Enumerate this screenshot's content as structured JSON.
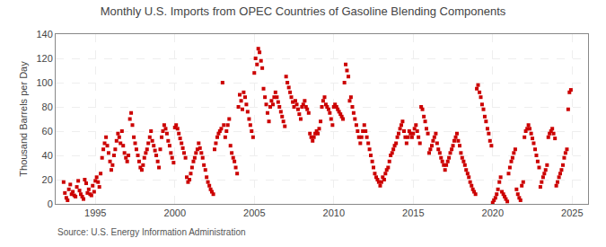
{
  "chart_data": {
    "type": "scatter",
    "title": "Monthly U.S. Imports from OPEC Countries of Gasoline Blending Components",
    "ylabel": "Thousand Barrels per Day",
    "annotations": [
      "Source: U.S. Energy Information Administration"
    ],
    "color": "#cc0000",
    "marker": "square",
    "grid": true,
    "xlim": [
      1992.5,
      2026.0
    ],
    "xticks": [
      1995,
      2000,
      2005,
      2010,
      2015,
      2020,
      2025
    ],
    "ylim": [
      0,
      140
    ],
    "yticks": [
      0,
      20,
      40,
      60,
      80,
      100,
      120,
      140
    ],
    "x": [
      1993.0,
      1993.08,
      1993.17,
      1993.25,
      1993.33,
      1993.42,
      1993.5,
      1993.58,
      1993.67,
      1993.75,
      1993.83,
      1993.92,
      1994.0,
      1994.08,
      1994.17,
      1994.25,
      1994.33,
      1994.42,
      1994.5,
      1994.58,
      1994.67,
      1994.75,
      1994.83,
      1994.92,
      1995.0,
      1995.08,
      1995.17,
      1995.25,
      1995.33,
      1995.42,
      1995.5,
      1995.58,
      1995.67,
      1995.75,
      1995.83,
      1995.92,
      1996.0,
      1996.08,
      1996.17,
      1996.25,
      1996.33,
      1996.42,
      1996.5,
      1996.58,
      1996.67,
      1996.75,
      1996.83,
      1996.92,
      1997.0,
      1997.08,
      1997.17,
      1997.25,
      1997.33,
      1997.42,
      1997.5,
      1997.58,
      1997.67,
      1997.75,
      1997.83,
      1997.92,
      1998.0,
      1998.08,
      1998.17,
      1998.25,
      1998.33,
      1998.42,
      1998.5,
      1998.58,
      1998.67,
      1998.75,
      1998.83,
      1998.92,
      1999.0,
      1999.08,
      1999.17,
      1999.25,
      1999.33,
      1999.42,
      1999.5,
      1999.58,
      1999.67,
      1999.75,
      1999.83,
      1999.92,
      2000.0,
      2000.08,
      2000.17,
      2000.25,
      2000.33,
      2000.42,
      2000.5,
      2000.58,
      2000.67,
      2000.75,
      2000.83,
      2000.92,
      2001.0,
      2001.08,
      2001.17,
      2001.25,
      2001.33,
      2001.42,
      2001.5,
      2001.58,
      2001.67,
      2001.75,
      2001.83,
      2001.92,
      2002.0,
      2002.08,
      2002.17,
      2002.25,
      2002.33,
      2002.42,
      2002.5,
      2002.58,
      2002.67,
      2002.75,
      2002.83,
      2002.92,
      2003.0,
      2003.08,
      2003.17,
      2003.25,
      2003.33,
      2003.42,
      2003.5,
      2003.58,
      2003.67,
      2003.75,
      2003.83,
      2003.92,
      2004.0,
      2004.08,
      2004.17,
      2004.25,
      2004.33,
      2004.42,
      2004.5,
      2004.58,
      2004.67,
      2004.75,
      2004.83,
      2004.92,
      2005.0,
      2005.08,
      2005.17,
      2005.25,
      2005.33,
      2005.42,
      2005.5,
      2005.58,
      2005.67,
      2005.75,
      2005.83,
      2005.92,
      2006.0,
      2006.08,
      2006.17,
      2006.25,
      2006.33,
      2006.42,
      2006.5,
      2006.58,
      2006.67,
      2006.75,
      2006.83,
      2006.92,
      2007.0,
      2007.08,
      2007.17,
      2007.25,
      2007.33,
      2007.42,
      2007.5,
      2007.58,
      2007.67,
      2007.75,
      2007.83,
      2007.92,
      2008.0,
      2008.08,
      2008.17,
      2008.25,
      2008.33,
      2008.42,
      2008.5,
      2008.58,
      2008.67,
      2008.75,
      2008.83,
      2008.92,
      2009.0,
      2009.08,
      2009.17,
      2009.25,
      2009.33,
      2009.42,
      2009.5,
      2009.58,
      2009.67,
      2009.75,
      2009.83,
      2009.92,
      2010.0,
      2010.08,
      2010.17,
      2010.25,
      2010.33,
      2010.42,
      2010.5,
      2010.58,
      2010.67,
      2010.75,
      2010.83,
      2010.92,
      2011.0,
      2011.08,
      2011.17,
      2011.25,
      2011.33,
      2011.42,
      2011.5,
      2011.58,
      2011.67,
      2011.75,
      2011.83,
      2011.92,
      2012.0,
      2012.08,
      2012.17,
      2012.25,
      2012.33,
      2012.42,
      2012.5,
      2012.58,
      2012.67,
      2012.75,
      2012.83,
      2012.92,
      2013.0,
      2013.08,
      2013.17,
      2013.25,
      2013.33,
      2013.42,
      2013.5,
      2013.58,
      2013.67,
      2013.75,
      2013.83,
      2013.92,
      2014.0,
      2014.08,
      2014.17,
      2014.25,
      2014.33,
      2014.42,
      2014.5,
      2014.58,
      2014.67,
      2014.75,
      2014.83,
      2014.92,
      2015.0,
      2015.08,
      2015.17,
      2015.25,
      2015.33,
      2015.42,
      2015.5,
      2015.58,
      2015.67,
      2015.75,
      2015.83,
      2015.92,
      2016.0,
      2016.08,
      2016.17,
      2016.25,
      2016.33,
      2016.42,
      2016.5,
      2016.58,
      2016.67,
      2016.75,
      2016.83,
      2016.92,
      2017.0,
      2017.08,
      2017.17,
      2017.25,
      2017.33,
      2017.42,
      2017.5,
      2017.58,
      2017.67,
      2017.75,
      2017.83,
      2017.92,
      2018.0,
      2018.08,
      2018.17,
      2018.25,
      2018.33,
      2018.42,
      2018.5,
      2018.58,
      2018.67,
      2018.75,
      2018.83,
      2018.92,
      2019.0,
      2019.08,
      2019.17,
      2019.25,
      2019.33,
      2019.42,
      2019.5,
      2019.58,
      2019.67,
      2019.75,
      2019.83,
      2019.92,
      2020.0,
      2020.08,
      2020.17,
      2020.25,
      2020.33,
      2020.42,
      2020.5,
      2020.58,
      2020.67,
      2020.75,
      2020.83,
      2020.92,
      2021.0,
      2021.08,
      2021.17,
      2021.25,
      2021.33,
      2021.42,
      2021.5,
      2021.58,
      2021.67,
      2021.75,
      2021.83,
      2021.92,
      2022.0,
      2022.08,
      2022.17,
      2022.25,
      2022.33,
      2022.42,
      2022.5,
      2022.58,
      2022.67,
      2022.75,
      2022.83,
      2022.92,
      2023.0,
      2023.08,
      2023.17,
      2023.25,
      2023.33,
      2023.42,
      2023.5,
      2023.58,
      2023.67,
      2023.75,
      2023.83,
      2023.92,
      2024.0,
      2024.08,
      2024.17,
      2024.25,
      2024.33,
      2024.42,
      2024.5,
      2024.58,
      2024.67,
      2024.75,
      2024.83,
      2024.92
    ],
    "values": [
      18,
      9,
      5,
      3,
      12,
      16,
      8,
      10,
      7,
      6,
      14,
      19,
      11,
      8,
      6,
      4,
      20,
      17,
      9,
      12,
      8,
      7,
      15,
      10,
      19,
      22,
      18,
      14,
      25,
      38,
      45,
      50,
      55,
      48,
      42,
      35,
      28,
      32,
      40,
      45,
      52,
      58,
      55,
      50,
      60,
      48,
      42,
      38,
      35,
      40,
      70,
      75,
      65,
      55,
      50,
      45,
      40,
      35,
      30,
      28,
      32,
      38,
      42,
      45,
      50,
      55,
      60,
      52,
      48,
      44,
      40,
      35,
      30,
      45,
      55,
      60,
      65,
      62,
      58,
      52,
      48,
      42,
      38,
      34,
      63,
      65,
      62,
      58,
      54,
      50,
      46,
      42,
      38,
      22,
      18,
      20,
      25,
      30,
      35,
      38,
      42,
      45,
      50,
      46,
      42,
      38,
      32,
      28,
      22,
      18,
      15,
      12,
      10,
      8,
      45,
      50,
      55,
      58,
      60,
      62,
      100,
      65,
      55,
      60,
      65,
      70,
      48,
      42,
      38,
      35,
      30,
      25,
      80,
      90,
      85,
      78,
      92,
      88,
      82,
      76,
      70,
      65,
      60,
      55,
      108,
      120,
      115,
      128,
      125,
      118,
      112,
      95,
      88,
      82,
      75,
      68,
      80,
      85,
      82,
      88,
      92,
      88,
      84,
      80,
      76,
      72,
      68,
      64,
      105,
      100,
      96,
      92,
      88,
      84,
      80,
      85,
      82,
      78,
      74,
      70,
      80,
      82,
      85,
      80,
      78,
      75,
      58,
      55,
      52,
      55,
      58,
      60,
      58,
      62,
      68,
      80,
      85,
      88,
      82,
      80,
      78,
      75,
      70,
      65,
      80,
      82,
      80,
      78,
      76,
      74,
      72,
      70,
      100,
      115,
      110,
      105,
      85,
      88,
      80,
      75,
      70,
      65,
      60,
      55,
      50,
      55,
      60,
      65,
      60,
      55,
      50,
      45,
      40,
      35,
      30,
      25,
      22,
      20,
      18,
      15,
      18,
      22,
      20,
      25,
      28,
      30,
      35,
      40,
      42,
      45,
      48,
      50,
      55,
      58,
      62,
      65,
      68,
      60,
      55,
      50,
      55,
      60,
      58,
      55,
      58,
      62,
      65,
      60,
      55,
      50,
      80,
      78,
      72,
      68,
      62,
      58,
      42,
      45,
      48,
      52,
      55,
      58,
      50,
      45,
      42,
      38,
      35,
      32,
      28,
      32,
      35,
      38,
      42,
      45,
      48,
      52,
      55,
      58,
      52,
      48,
      42,
      38,
      35,
      32,
      28,
      25,
      22,
      18,
      15,
      12,
      10,
      8,
      95,
      98,
      92,
      88,
      82,
      78,
      72,
      68,
      62,
      58,
      52,
      48,
      1,
      3,
      5,
      8,
      12,
      18,
      22,
      10,
      8,
      6,
      4,
      2,
      25,
      30,
      35,
      38,
      42,
      45,
      12,
      8,
      5,
      3,
      15,
      18,
      55,
      60,
      62,
      65,
      62,
      58,
      54,
      50,
      45,
      40,
      35,
      30,
      14,
      18,
      22,
      25,
      28,
      32,
      55,
      58,
      60,
      62,
      58,
      54,
      15,
      18,
      22,
      25,
      28,
      32,
      38,
      42,
      45,
      78,
      92,
      94
    ]
  }
}
